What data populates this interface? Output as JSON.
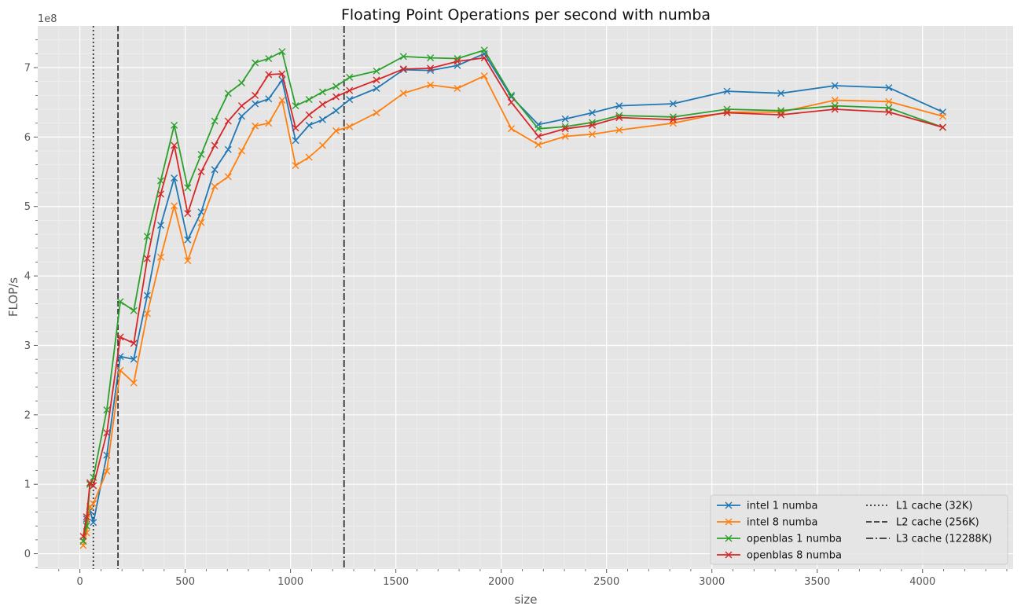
{
  "chart_data": {
    "type": "line",
    "title": "Floating Point Operations per second with numba",
    "xlabel": "size",
    "ylabel": "FLOP/s",
    "y_multiplier_label": "1e8",
    "xlim": [
      -200,
      4430
    ],
    "ylim": [
      -0.22,
      7.6
    ],
    "xticks": [
      0,
      500,
      1000,
      1500,
      2000,
      2500,
      3000,
      3500,
      4000
    ],
    "yticks": [
      0,
      1,
      2,
      3,
      4,
      5,
      6,
      7
    ],
    "grid": true,
    "legend_position": "lower-right",
    "x": [
      16,
      32,
      48,
      64,
      128,
      192,
      256,
      320,
      384,
      448,
      512,
      576,
      640,
      704,
      768,
      832,
      896,
      960,
      1024,
      1088,
      1152,
      1216,
      1280,
      1408,
      1536,
      1664,
      1792,
      1920,
      2048,
      2176,
      2304,
      2432,
      2560,
      2816,
      3072,
      3328,
      3584,
      3840,
      4096
    ],
    "series": [
      {
        "name": "intel 1 numba",
        "color": "#1f77b4",
        "values": [
          0.18,
          0.5,
          0.62,
          0.45,
          1.42,
          2.84,
          2.8,
          3.72,
          4.73,
          5.41,
          4.52,
          4.92,
          5.53,
          5.82,
          6.3,
          6.48,
          6.55,
          6.82,
          5.95,
          6.17,
          6.25,
          6.38,
          6.54,
          6.7,
          6.97,
          6.96,
          7.03,
          7.2,
          6.58,
          6.18,
          6.26,
          6.35,
          6.45,
          6.48,
          6.66,
          6.63,
          6.74,
          6.71,
          6.36
        ]
      },
      {
        "name": "intel 8 numba",
        "color": "#ff7f0e",
        "values": [
          0.12,
          0.3,
          0.68,
          0.72,
          1.19,
          2.64,
          2.46,
          3.46,
          4.27,
          5.01,
          4.22,
          4.77,
          5.29,
          5.43,
          5.8,
          6.16,
          6.2,
          6.53,
          5.59,
          5.71,
          5.88,
          6.09,
          6.15,
          6.35,
          6.63,
          6.75,
          6.7,
          6.88,
          6.12,
          5.89,
          6.01,
          6.04,
          6.1,
          6.2,
          6.36,
          6.36,
          6.53,
          6.51,
          6.3
        ]
      },
      {
        "name": "openblas 1 numba",
        "color": "#2ca02c",
        "values": [
          0.18,
          0.4,
          1.0,
          1.1,
          2.07,
          3.63,
          3.5,
          4.57,
          5.37,
          6.17,
          5.27,
          5.75,
          6.23,
          6.63,
          6.78,
          7.07,
          7.13,
          7.23,
          6.45,
          6.54,
          6.65,
          6.73,
          6.86,
          6.95,
          7.16,
          7.14,
          7.13,
          7.25,
          6.6,
          6.12,
          6.15,
          6.21,
          6.31,
          6.29,
          6.4,
          6.38,
          6.45,
          6.42,
          6.14
        ]
      },
      {
        "name": "openblas 8 numba",
        "color": "#d62728",
        "values": [
          0.25,
          0.53,
          1.02,
          0.98,
          1.74,
          3.12,
          3.03,
          4.25,
          5.18,
          5.88,
          4.9,
          5.5,
          5.88,
          6.23,
          6.45,
          6.6,
          6.9,
          6.91,
          6.13,
          6.32,
          6.47,
          6.58,
          6.67,
          6.82,
          6.98,
          6.99,
          7.09,
          7.14,
          6.5,
          6.01,
          6.12,
          6.17,
          6.28,
          6.25,
          6.35,
          6.32,
          6.4,
          6.36,
          6.14
        ]
      }
    ],
    "reference_lines": [
      {
        "name": "L1 cache (32K)",
        "x": 64,
        "style": "dotted",
        "color": "#333333"
      },
      {
        "name": "L2 cache (256K)",
        "x": 181,
        "style": "dashed",
        "color": "#333333"
      },
      {
        "name": "L3 cache (12288K)",
        "x": 1254,
        "style": "dashdot",
        "color": "#333333"
      }
    ]
  }
}
